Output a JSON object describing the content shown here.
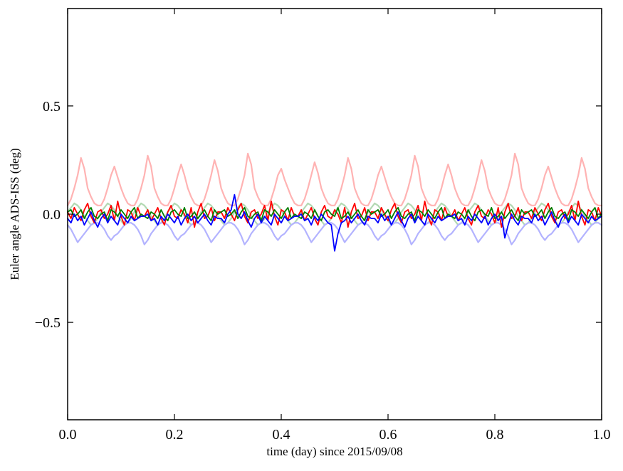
{
  "chart_data": {
    "type": "line",
    "title": "",
    "xlabel": "time (day) since 2015/09/08",
    "ylabel": "Euler angle ADS-ISS (deg)",
    "xlim": [
      0.0,
      1.0
    ],
    "ylim": [
      -0.95,
      0.95
    ],
    "grid": false,
    "legend": "none",
    "frame_color": "#000000",
    "background": "#ffffff",
    "xticks": {
      "values": [
        0.0,
        0.2,
        0.4,
        0.6,
        0.8,
        1.0
      ],
      "labels": [
        "0.0",
        "0.2",
        "0.4",
        "0.6",
        "0.8",
        "1.0"
      ]
    },
    "yticks": {
      "values": [
        -0.5,
        0.0,
        0.5
      ],
      "labels": [
        "−0.5",
        "0.0",
        "0.5"
      ]
    },
    "x_sampling": {
      "start": 0.0,
      "end": 1.0,
      "n": 161,
      "uniform": true
    },
    "series": [
      {
        "name": "light-red",
        "color": "#ffb3b3",
        "width": 2.2,
        "values": [
          0.04,
          0.07,
          0.12,
          0.18,
          0.26,
          0.21,
          0.12,
          0.08,
          0.05,
          0.04,
          0.04,
          0.07,
          0.12,
          0.18,
          0.22,
          0.17,
          0.12,
          0.08,
          0.05,
          0.04,
          0.04,
          0.07,
          0.12,
          0.18,
          0.27,
          0.22,
          0.12,
          0.08,
          0.05,
          0.04,
          0.04,
          0.07,
          0.12,
          0.18,
          0.23,
          0.18,
          0.12,
          0.08,
          0.05,
          0.04,
          0.04,
          0.07,
          0.12,
          0.18,
          0.25,
          0.2,
          0.12,
          0.08,
          0.05,
          0.04,
          0.04,
          0.07,
          0.12,
          0.18,
          0.28,
          0.23,
          0.12,
          0.08,
          0.05,
          0.04,
          0.04,
          0.07,
          0.12,
          0.18,
          0.21,
          0.16,
          0.12,
          0.08,
          0.05,
          0.04,
          0.04,
          0.07,
          0.12,
          0.18,
          0.24,
          0.19,
          0.12,
          0.08,
          0.05,
          0.04,
          0.04,
          0.07,
          0.12,
          0.18,
          0.26,
          0.21,
          0.12,
          0.08,
          0.05,
          0.04,
          0.04,
          0.07,
          0.12,
          0.18,
          0.22,
          0.17,
          0.12,
          0.08,
          0.05,
          0.04,
          0.04,
          0.07,
          0.12,
          0.18,
          0.27,
          0.22,
          0.12,
          0.08,
          0.05,
          0.04,
          0.04,
          0.07,
          0.12,
          0.18,
          0.23,
          0.18,
          0.12,
          0.08,
          0.05,
          0.04,
          0.04,
          0.07,
          0.12,
          0.18,
          0.25,
          0.2,
          0.12,
          0.08,
          0.05,
          0.04,
          0.04,
          0.07,
          0.12,
          0.18,
          0.28,
          0.23,
          0.12,
          0.08,
          0.05,
          0.04,
          0.04,
          0.07,
          0.12,
          0.18,
          0.22,
          0.17,
          0.12,
          0.08,
          0.05,
          0.04,
          0.04,
          0.07,
          0.12,
          0.18,
          0.26,
          0.21,
          0.12,
          0.08,
          0.05,
          0.04,
          0.04
        ]
      },
      {
        "name": "light-green",
        "color": "#b3d9b3",
        "width": 2.2,
        "values": [
          0.01,
          0.03,
          0.05,
          0.04,
          0.02,
          -0.01,
          -0.03,
          -0.05,
          -0.04,
          -0.02,
          0.01,
          0.03,
          0.05,
          0.04,
          0.02,
          -0.01,
          -0.03,
          -0.05,
          -0.04,
          -0.02,
          0.01,
          0.03,
          0.05,
          0.04,
          0.02,
          -0.01,
          -0.03,
          -0.05,
          -0.04,
          -0.02,
          0.01,
          0.03,
          0.05,
          0.04,
          0.02,
          -0.01,
          -0.03,
          -0.05,
          -0.04,
          -0.02,
          0.01,
          0.03,
          0.05,
          0.04,
          0.02,
          -0.01,
          -0.03,
          -0.05,
          -0.04,
          -0.02,
          0.01,
          0.03,
          0.05,
          0.04,
          0.02,
          -0.01,
          -0.03,
          -0.05,
          -0.04,
          -0.02,
          0.01,
          0.03,
          0.05,
          0.04,
          0.02,
          -0.01,
          -0.03,
          -0.05,
          -0.04,
          -0.02,
          0.01,
          0.03,
          0.05,
          0.04,
          0.02,
          -0.01,
          -0.03,
          -0.05,
          -0.04,
          -0.02,
          0.01,
          0.03,
          0.05,
          0.04,
          0.02,
          -0.01,
          -0.03,
          -0.05,
          -0.04,
          -0.02,
          0.01,
          0.03,
          0.05,
          0.04,
          0.02,
          -0.01,
          -0.03,
          -0.05,
          -0.04,
          -0.02,
          0.01,
          0.03,
          0.05,
          0.04,
          0.02,
          -0.01,
          -0.03,
          -0.05,
          -0.04,
          -0.02,
          0.01,
          0.03,
          0.05,
          0.04,
          0.02,
          -0.01,
          -0.03,
          -0.05,
          -0.04,
          -0.02,
          0.01,
          0.03,
          0.05,
          0.04,
          0.02,
          -0.01,
          -0.03,
          -0.05,
          -0.04,
          -0.02,
          0.01,
          0.03,
          0.05,
          0.04,
          0.02,
          -0.01,
          -0.03,
          -0.05,
          -0.04,
          -0.02,
          0.01,
          0.03,
          0.05,
          0.04,
          0.02,
          -0.01,
          -0.03,
          -0.05,
          -0.04,
          -0.02,
          0.01,
          0.03,
          0.05,
          0.04,
          0.02,
          -0.01,
          -0.03,
          -0.05,
          -0.04,
          -0.02,
          0.01
        ]
      },
      {
        "name": "light-blue",
        "color": "#b3b3ff",
        "width": 2.2,
        "values": [
          -0.05,
          -0.07,
          -0.1,
          -0.13,
          -0.11,
          -0.09,
          -0.07,
          -0.05,
          -0.04,
          -0.04,
          -0.05,
          -0.07,
          -0.1,
          -0.12,
          -0.1,
          -0.09,
          -0.07,
          -0.05,
          -0.04,
          -0.04,
          -0.05,
          -0.07,
          -0.1,
          -0.14,
          -0.12,
          -0.09,
          -0.07,
          -0.05,
          -0.04,
          -0.04,
          -0.05,
          -0.07,
          -0.1,
          -0.12,
          -0.1,
          -0.09,
          -0.07,
          -0.05,
          -0.04,
          -0.04,
          -0.05,
          -0.07,
          -0.1,
          -0.13,
          -0.11,
          -0.09,
          -0.07,
          -0.05,
          -0.04,
          -0.04,
          -0.05,
          -0.07,
          -0.1,
          -0.14,
          -0.12,
          -0.09,
          -0.07,
          -0.05,
          -0.04,
          -0.04,
          -0.05,
          -0.07,
          -0.1,
          -0.12,
          -0.1,
          -0.09,
          -0.07,
          -0.05,
          -0.04,
          -0.04,
          -0.05,
          -0.07,
          -0.1,
          -0.13,
          -0.11,
          -0.09,
          -0.07,
          -0.05,
          -0.04,
          -0.04,
          -0.05,
          -0.07,
          -0.1,
          -0.13,
          -0.11,
          -0.09,
          -0.07,
          -0.05,
          -0.04,
          -0.04,
          -0.05,
          -0.07,
          -0.1,
          -0.12,
          -0.1,
          -0.09,
          -0.07,
          -0.05,
          -0.04,
          -0.04,
          -0.05,
          -0.07,
          -0.1,
          -0.14,
          -0.12,
          -0.09,
          -0.07,
          -0.05,
          -0.04,
          -0.04,
          -0.05,
          -0.07,
          -0.1,
          -0.12,
          -0.1,
          -0.09,
          -0.07,
          -0.05,
          -0.04,
          -0.04,
          -0.05,
          -0.07,
          -0.1,
          -0.13,
          -0.11,
          -0.09,
          -0.07,
          -0.05,
          -0.04,
          -0.04,
          -0.05,
          -0.07,
          -0.1,
          -0.14,
          -0.12,
          -0.09,
          -0.07,
          -0.05,
          -0.04,
          -0.04,
          -0.05,
          -0.07,
          -0.1,
          -0.12,
          -0.1,
          -0.09,
          -0.07,
          -0.05,
          -0.04,
          -0.04,
          -0.05,
          -0.07,
          -0.1,
          -0.13,
          -0.11,
          -0.09,
          -0.07,
          -0.05,
          -0.04,
          -0.04,
          -0.05
        ]
      },
      {
        "name": "red",
        "color": "#ff0000",
        "width": 1.8,
        "values": [
          0.01,
          -0.02,
          0.03,
          0.0,
          -0.03,
          0.02,
          0.05,
          -0.01,
          -0.04,
          0.01,
          0.02,
          -0.02,
          0.0,
          0.04,
          -0.03,
          0.06,
          -0.01,
          -0.05,
          0.02,
          0.01,
          -0.03,
          0.03,
          -0.01,
          -0.01,
          0.02,
          -0.03,
          0.0,
          0.03,
          -0.02,
          -0.05,
          0.01,
          0.04,
          -0.01,
          -0.02,
          0.02,
          0.0,
          -0.04,
          0.03,
          -0.06,
          0.01,
          0.05,
          -0.02,
          -0.01,
          0.03,
          -0.03,
          0.01,
          0.01,
          -0.02,
          0.03,
          0.0,
          -0.03,
          0.02,
          0.05,
          -0.01,
          -0.04,
          0.01,
          0.02,
          -0.02,
          0.0,
          0.04,
          -0.03,
          0.06,
          -0.01,
          -0.05,
          0.02,
          0.01,
          -0.03,
          0.03,
          -0.01,
          -0.01,
          0.02,
          -0.03,
          0.0,
          0.03,
          -0.02,
          -0.05,
          0.01,
          0.04,
          -0.01,
          -0.02,
          0.02,
          0.0,
          -0.04,
          0.03,
          -0.06,
          0.01,
          0.05,
          -0.02,
          -0.01,
          0.03,
          -0.03,
          0.01,
          0.01,
          -0.02,
          0.03,
          0.0,
          -0.03,
          0.02,
          0.05,
          -0.01,
          -0.04,
          0.01,
          0.02,
          -0.02,
          0.0,
          0.04,
          -0.03,
          0.06,
          -0.01,
          -0.05,
          0.02,
          0.01,
          -0.03,
          0.03,
          -0.01,
          -0.01,
          0.02,
          -0.03,
          0.0,
          0.03,
          -0.02,
          -0.05,
          0.01,
          0.04,
          -0.01,
          -0.02,
          0.02,
          0.0,
          -0.04,
          0.03,
          -0.06,
          0.01,
          0.05,
          -0.02,
          -0.01,
          0.03,
          -0.03,
          0.01,
          0.01,
          -0.02,
          0.03,
          0.0,
          -0.03,
          0.02,
          0.05,
          -0.01,
          -0.04,
          0.01,
          0.02,
          -0.02,
          0.0,
          0.04,
          -0.03,
          0.06,
          -0.01,
          -0.05,
          0.02,
          0.01,
          -0.03,
          0.03,
          -0.01
        ]
      },
      {
        "name": "green",
        "color": "#007f00",
        "width": 1.8,
        "values": [
          0.01,
          0.02,
          -0.01,
          0.0,
          0.02,
          -0.02,
          0.01,
          0.03,
          -0.01,
          -0.02,
          0.0,
          0.01,
          -0.03,
          0.02,
          0.01,
          -0.01,
          0.02,
          0.0,
          -0.02,
          0.01,
          0.03,
          -0.02,
          0.0,
          -0.01,
          -0.02,
          0.01,
          0.0,
          -0.02,
          0.02,
          -0.01,
          -0.03,
          0.01,
          0.02,
          0.0,
          -0.01,
          0.03,
          -0.02,
          -0.01,
          0.01,
          -0.02,
          0.0,
          0.02,
          -0.01,
          -0.03,
          0.02,
          0.0,
          0.01,
          0.02,
          -0.01,
          0.0,
          0.02,
          -0.02,
          0.01,
          0.03,
          -0.01,
          -0.02,
          0.0,
          0.01,
          -0.03,
          0.02,
          0.01,
          -0.01,
          0.02,
          0.0,
          -0.02,
          0.01,
          0.03,
          -0.02,
          0.0,
          -0.01,
          -0.02,
          0.01,
          0.0,
          -0.02,
          0.02,
          -0.01,
          -0.03,
          0.01,
          0.02,
          0.0,
          -0.01,
          0.03,
          -0.02,
          -0.01,
          0.01,
          -0.02,
          0.0,
          0.02,
          -0.01,
          -0.03,
          0.02,
          0.0,
          0.01,
          0.02,
          -0.01,
          0.0,
          0.02,
          -0.02,
          0.01,
          0.03,
          -0.01,
          -0.02,
          0.0,
          0.01,
          -0.03,
          0.02,
          0.01,
          -0.01,
          0.02,
          0.0,
          -0.02,
          0.01,
          0.03,
          -0.02,
          0.0,
          -0.01,
          -0.02,
          0.01,
          0.0,
          -0.02,
          0.02,
          -0.01,
          -0.03,
          0.01,
          0.02,
          0.0,
          -0.01,
          0.03,
          -0.02,
          -0.01,
          0.01,
          -0.02,
          0.0,
          0.02,
          -0.01,
          -0.03,
          0.02,
          0.0,
          0.01,
          0.02,
          -0.01,
          0.0,
          0.02,
          -0.02,
          0.01,
          0.03,
          -0.01,
          -0.02,
          0.0,
          0.01,
          -0.03,
          0.02,
          0.01,
          -0.01,
          0.02,
          0.0,
          -0.02,
          0.01,
          0.03,
          -0.02,
          0.0
        ]
      },
      {
        "name": "blue",
        "color": "#0000ff",
        "width": 1.8,
        "values": [
          -0.02,
          -0.04,
          0.0,
          -0.03,
          -0.01,
          -0.05,
          -0.02,
          0.01,
          -0.03,
          -0.06,
          -0.02,
          0.0,
          -0.04,
          -0.01,
          -0.03,
          -0.05,
          0.0,
          -0.02,
          -0.04,
          -0.01,
          -0.03,
          -0.02,
          -0.01,
          -0.01,
          0.0,
          -0.03,
          -0.02,
          -0.05,
          -0.01,
          -0.03,
          0.0,
          -0.02,
          -0.04,
          -0.01,
          -0.05,
          -0.02,
          0.0,
          -0.03,
          -0.01,
          -0.04,
          -0.02,
          0.0,
          -0.03,
          -0.05,
          -0.01,
          -0.02,
          -0.02,
          -0.04,
          0.0,
          0.02,
          0.09,
          0.0,
          -0.02,
          0.01,
          -0.03,
          -0.06,
          -0.02,
          0.0,
          -0.04,
          -0.01,
          -0.03,
          -0.05,
          0.0,
          -0.02,
          -0.04,
          -0.01,
          -0.03,
          -0.02,
          -0.01,
          -0.01,
          0.0,
          -0.03,
          -0.02,
          -0.05,
          -0.01,
          -0.03,
          0.0,
          -0.02,
          -0.04,
          -0.05,
          -0.17,
          -0.09,
          -0.04,
          -0.03,
          -0.01,
          -0.04,
          -0.02,
          0.0,
          -0.03,
          -0.05,
          -0.01,
          -0.02,
          -0.02,
          -0.04,
          0.0,
          -0.03,
          -0.01,
          -0.05,
          -0.02,
          0.01,
          -0.03,
          -0.06,
          -0.02,
          0.0,
          -0.04,
          -0.01,
          -0.03,
          -0.05,
          0.0,
          -0.02,
          -0.04,
          -0.01,
          -0.03,
          -0.02,
          -0.01,
          -0.01,
          0.0,
          -0.03,
          -0.02,
          -0.05,
          -0.01,
          -0.03,
          0.0,
          -0.02,
          -0.04,
          -0.01,
          -0.05,
          -0.02,
          0.0,
          -0.03,
          -0.01,
          -0.11,
          -0.05,
          0.0,
          -0.03,
          -0.05,
          -0.01,
          -0.02,
          -0.02,
          -0.04,
          0.0,
          -0.03,
          -0.01,
          -0.05,
          -0.02,
          0.01,
          -0.03,
          -0.06,
          -0.02,
          0.0,
          -0.04,
          -0.01,
          -0.03,
          -0.05,
          0.0,
          -0.02,
          -0.04,
          -0.01,
          -0.03,
          -0.02,
          -0.01
        ]
      }
    ]
  }
}
